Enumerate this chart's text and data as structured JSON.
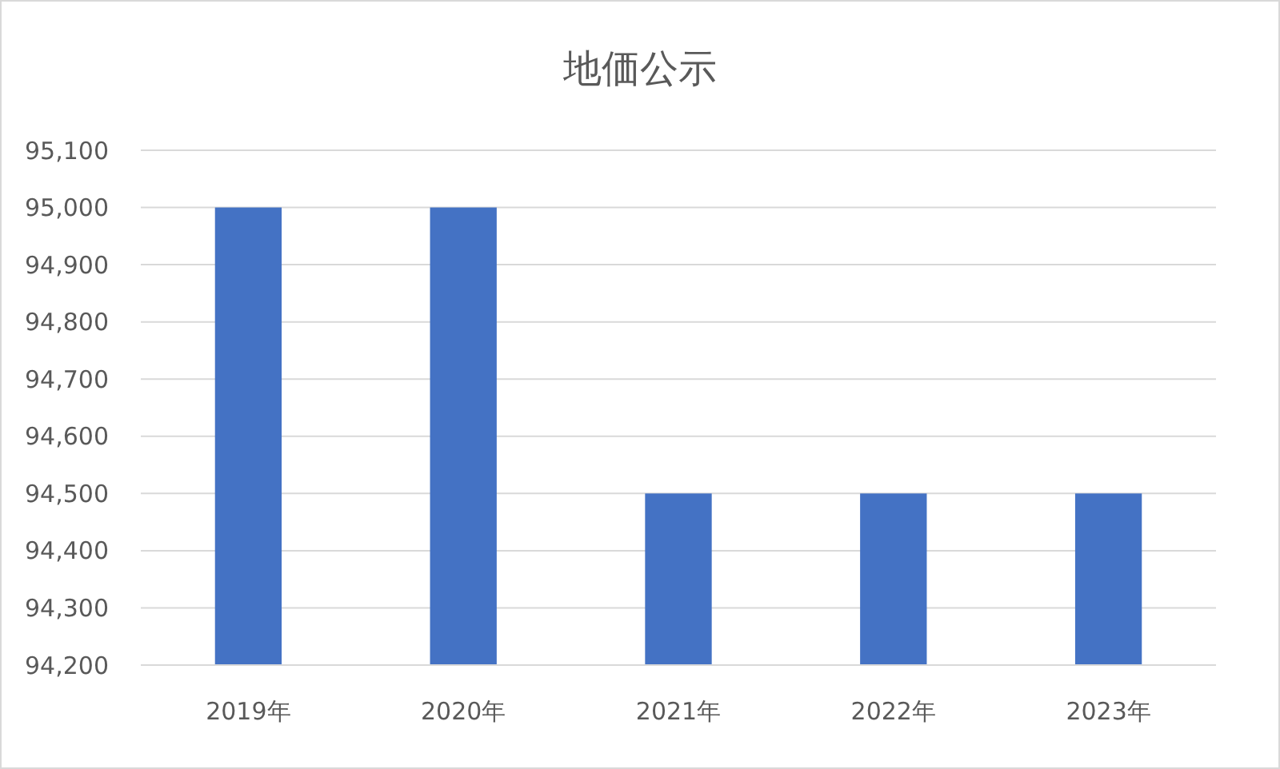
{
  "chart_data": {
    "type": "bar",
    "title": "地価公示",
    "categories": [
      "2019年",
      "2020年",
      "2021年",
      "2022年",
      "2023年"
    ],
    "values": [
      95000,
      95000,
      94500,
      94500,
      94500
    ],
    "color": "#4472c4",
    "ylim": [
      94200,
      95100
    ],
    "yticks": [
      {
        "value": 94200,
        "label": "94,200"
      },
      {
        "value": 94300,
        "label": "94,300"
      },
      {
        "value": 94400,
        "label": "94,400"
      },
      {
        "value": 94500,
        "label": "94,500"
      },
      {
        "value": 94600,
        "label": "94,600"
      },
      {
        "value": 94700,
        "label": "94,700"
      },
      {
        "value": 94800,
        "label": "94,800"
      },
      {
        "value": 94900,
        "label": "94,900"
      },
      {
        "value": 95000,
        "label": "95,000"
      },
      {
        "value": 95100,
        "label": "95,100"
      }
    ],
    "grid": "y"
  }
}
